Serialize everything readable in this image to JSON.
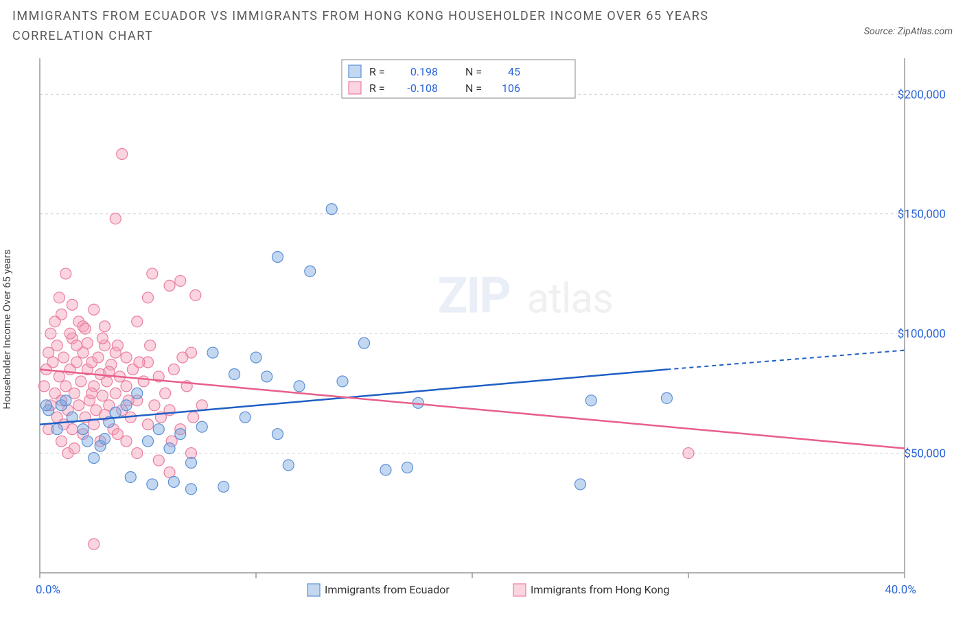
{
  "title": "IMMIGRANTS FROM ECUADOR VS IMMIGRANTS FROM HONG KONG HOUSEHOLDER INCOME OVER 65 YEARS CORRELATION CHART",
  "source_label": "Source: ZipAtlas.com",
  "y_axis_title": "Householder Income Over 65 years",
  "watermark": {
    "part1": "ZIP",
    "part2": "atlas"
  },
  "colors": {
    "series1_stroke": "#5b8fd6",
    "series1_fill": "rgba(123,168,222,0.45)",
    "series2_stroke": "#e97ea0",
    "series2_fill": "rgba(244,160,184,0.45)",
    "grid": "#cfcfcf",
    "axis": "#999999",
    "tick_text": "#2b65d9",
    "trend1": "#1f5fc4",
    "trend2": "#e85f8a"
  },
  "plot": {
    "x_min": 0.0,
    "x_max": 40.0,
    "y_min": 0,
    "y_max": 215000,
    "y_ticks": [
      50000,
      100000,
      150000,
      200000
    ],
    "y_tick_labels": [
      "$50,000",
      "$100,000",
      "$150,000",
      "$200,000"
    ],
    "x_ticks": [
      0,
      10,
      20,
      30,
      40
    ],
    "x_tick_labels": [
      "0.0%",
      "",
      "",
      "",
      "40.0%"
    ],
    "marker_radius": 8,
    "marker_stroke_width": 1.2
  },
  "legend_stats": {
    "labels": {
      "R": "R =",
      "N": "N ="
    },
    "series1": {
      "R": "0.198",
      "N": "45"
    },
    "series2": {
      "R": "-0.108",
      "N": "106"
    }
  },
  "footer_legend": {
    "series1": "Immigrants from Ecuador",
    "series2": "Immigrants from Hong Kong"
  },
  "trend_lines": {
    "series1": {
      "x1": 0.0,
      "y1": 62000,
      "x2": 29.0,
      "y2": 85000,
      "dash_x2": 40.0,
      "dash_y2": 93000
    },
    "series2": {
      "x1": 0.0,
      "y1": 85000,
      "x2": 40.0,
      "y2": 52000
    }
  },
  "series1_points": [
    [
      0.4,
      68000
    ],
    [
      0.8,
      60000
    ],
    [
      1.0,
      70000
    ],
    [
      1.2,
      72000
    ],
    [
      1.5,
      65000
    ],
    [
      2.0,
      60000
    ],
    [
      2.2,
      55000
    ],
    [
      2.5,
      48000
    ],
    [
      2.8,
      53000
    ],
    [
      3.0,
      56000
    ],
    [
      3.2,
      63000
    ],
    [
      3.5,
      67000
    ],
    [
      4.0,
      70000
    ],
    [
      4.2,
      40000
    ],
    [
      4.5,
      75000
    ],
    [
      5.0,
      55000
    ],
    [
      5.2,
      37000
    ],
    [
      5.5,
      60000
    ],
    [
      6.0,
      52000
    ],
    [
      6.2,
      38000
    ],
    [
      6.5,
      58000
    ],
    [
      7.0,
      46000
    ],
    [
      7.0,
      35000
    ],
    [
      7.5,
      61000
    ],
    [
      8.0,
      92000
    ],
    [
      8.5,
      36000
    ],
    [
      9.0,
      83000
    ],
    [
      9.5,
      65000
    ],
    [
      10.0,
      90000
    ],
    [
      10.5,
      82000
    ],
    [
      11.0,
      58000
    ],
    [
      11.0,
      132000
    ],
    [
      11.5,
      45000
    ],
    [
      12.0,
      78000
    ],
    [
      12.5,
      126000
    ],
    [
      13.5,
      152000
    ],
    [
      14.0,
      80000
    ],
    [
      15.0,
      96000
    ],
    [
      16.0,
      43000
    ],
    [
      17.0,
      44000
    ],
    [
      17.5,
      71000
    ],
    [
      25.0,
      37000
    ],
    [
      25.5,
      72000
    ],
    [
      29.0,
      73000
    ],
    [
      0.3,
      70000
    ]
  ],
  "series2_points": [
    [
      0.2,
      78000
    ],
    [
      0.3,
      85000
    ],
    [
      0.4,
      92000
    ],
    [
      0.5,
      70000
    ],
    [
      0.5,
      100000
    ],
    [
      0.6,
      88000
    ],
    [
      0.7,
      75000
    ],
    [
      0.8,
      95000
    ],
    [
      0.8,
      65000
    ],
    [
      0.9,
      82000
    ],
    [
      1.0,
      108000
    ],
    [
      1.0,
      72000
    ],
    [
      1.1,
      90000
    ],
    [
      1.2,
      78000
    ],
    [
      1.2,
      125000
    ],
    [
      1.3,
      68000
    ],
    [
      1.4,
      85000
    ],
    [
      1.5,
      98000
    ],
    [
      1.5,
      60000
    ],
    [
      1.5,
      112000
    ],
    [
      1.6,
      75000
    ],
    [
      1.7,
      88000
    ],
    [
      1.8,
      70000
    ],
    [
      1.8,
      105000
    ],
    [
      1.9,
      80000
    ],
    [
      2.0,
      92000
    ],
    [
      2.0,
      58000
    ],
    [
      2.0,
      103000
    ],
    [
      2.1,
      65000
    ],
    [
      2.2,
      85000
    ],
    [
      2.2,
      96000
    ],
    [
      2.3,
      72000
    ],
    [
      2.4,
      88000
    ],
    [
      2.5,
      110000
    ],
    [
      2.5,
      62000
    ],
    [
      2.5,
      78000
    ],
    [
      2.6,
      68000
    ],
    [
      2.7,
      90000
    ],
    [
      2.8,
      55000
    ],
    [
      2.8,
      83000
    ],
    [
      2.9,
      74000
    ],
    [
      3.0,
      95000
    ],
    [
      3.0,
      66000
    ],
    [
      3.0,
      103000
    ],
    [
      3.1,
      80000
    ],
    [
      3.2,
      70000
    ],
    [
      3.3,
      87000
    ],
    [
      3.4,
      60000
    ],
    [
      3.5,
      92000
    ],
    [
      3.5,
      148000
    ],
    [
      3.5,
      75000
    ],
    [
      3.6,
      58000
    ],
    [
      3.7,
      82000
    ],
    [
      3.8,
      68000
    ],
    [
      3.8,
      175000
    ],
    [
      4.0,
      78000
    ],
    [
      4.0,
      55000
    ],
    [
      4.0,
      90000
    ],
    [
      4.2,
      65000
    ],
    [
      4.3,
      85000
    ],
    [
      4.5,
      72000
    ],
    [
      4.5,
      105000
    ],
    [
      4.5,
      50000
    ],
    [
      4.8,
      80000
    ],
    [
      5.0,
      88000
    ],
    [
      5.0,
      62000
    ],
    [
      5.0,
      115000
    ],
    [
      5.2,
      125000
    ],
    [
      5.3,
      70000
    ],
    [
      5.5,
      82000
    ],
    [
      5.5,
      47000
    ],
    [
      5.8,
      75000
    ],
    [
      6.0,
      120000
    ],
    [
      6.0,
      68000
    ],
    [
      6.0,
      42000
    ],
    [
      6.2,
      85000
    ],
    [
      6.5,
      122000
    ],
    [
      6.5,
      60000
    ],
    [
      6.8,
      78000
    ],
    [
      7.0,
      92000
    ],
    [
      7.0,
      50000
    ],
    [
      7.2,
      116000
    ],
    [
      7.5,
      70000
    ],
    [
      2.5,
      12000
    ],
    [
      1.0,
      55000
    ],
    [
      1.3,
      50000
    ],
    [
      1.6,
      52000
    ],
    [
      0.4,
      60000
    ],
    [
      0.7,
      105000
    ],
    [
      0.9,
      115000
    ],
    [
      1.1,
      62000
    ],
    [
      1.4,
      100000
    ],
    [
      1.7,
      95000
    ],
    [
      2.1,
      102000
    ],
    [
      2.4,
      75000
    ],
    [
      2.9,
      98000
    ],
    [
      3.2,
      84000
    ],
    [
      3.6,
      95000
    ],
    [
      4.1,
      72000
    ],
    [
      4.6,
      88000
    ],
    [
      5.1,
      95000
    ],
    [
      5.6,
      65000
    ],
    [
      6.1,
      55000
    ],
    [
      6.6,
      90000
    ],
    [
      7.1,
      65000
    ],
    [
      30.0,
      50000
    ]
  ]
}
